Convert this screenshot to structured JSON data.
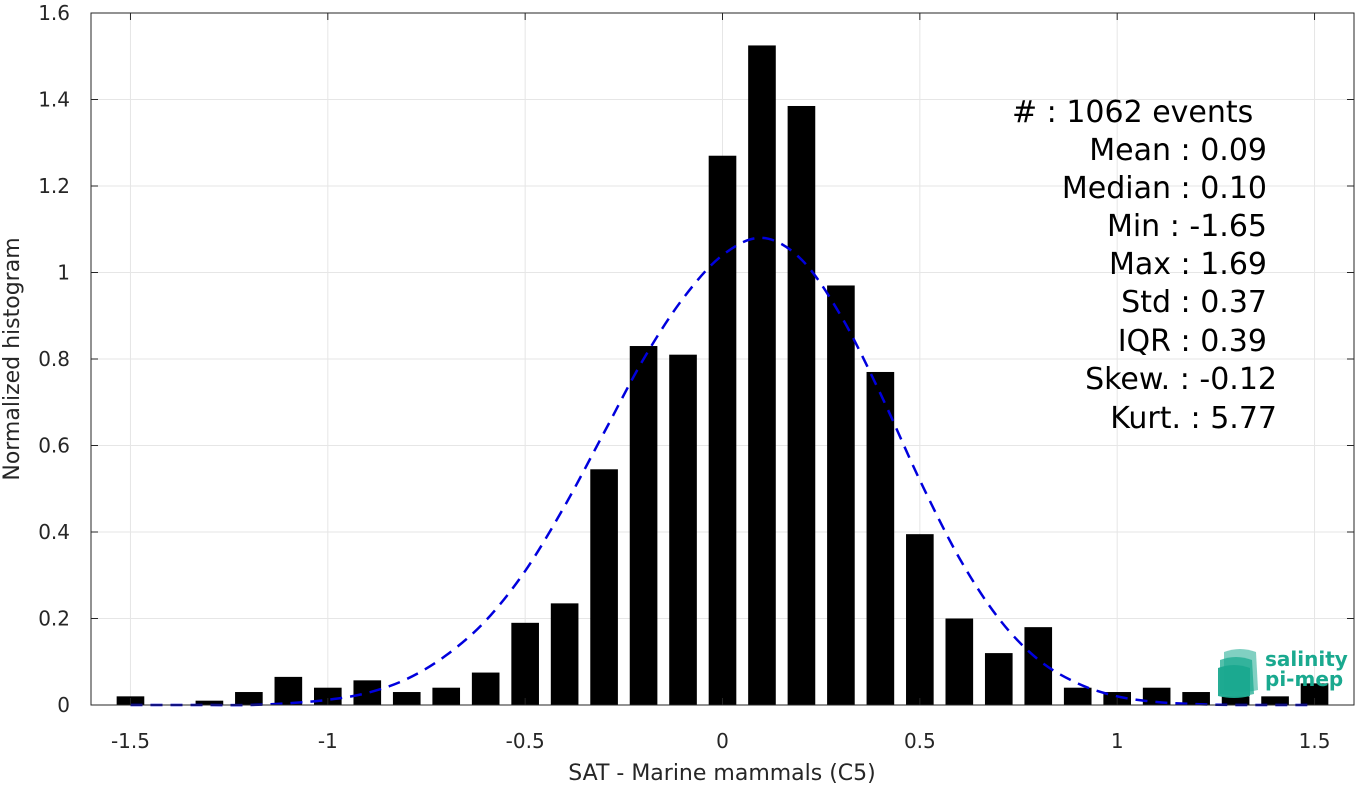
{
  "chart_data": {
    "type": "bar",
    "xlabel": "SAT - Marine mammals (C5)",
    "ylabel": "Normalized histogram",
    "xlim": [
      -1.6,
      1.6
    ],
    "ylim": [
      0,
      1.6
    ],
    "xticks": [
      -1.5,
      -1,
      -0.5,
      0,
      0.5,
      1,
      1.5
    ],
    "xtick_labels": [
      "-1.5",
      "-1",
      "-0.5",
      "0",
      "0.5",
      "1",
      "1.5"
    ],
    "yticks": [
      0,
      0.2,
      0.4,
      0.6,
      0.8,
      1,
      1.2,
      1.4,
      1.6
    ],
    "ytick_labels": [
      "0",
      "0.2",
      "0.4",
      "0.6",
      "0.8",
      "1",
      "1.2",
      "1.4",
      "1.6"
    ],
    "grid": true,
    "bin_centers": [
      -1.5,
      -1.4,
      -1.3,
      -1.2,
      -1.1,
      -1.0,
      -0.9,
      -0.8,
      -0.7,
      -0.6,
      -0.5,
      -0.4,
      -0.3,
      -0.2,
      -0.1,
      0.0,
      0.1,
      0.2,
      0.3,
      0.4,
      0.5,
      0.6,
      0.7,
      0.8,
      0.9,
      1.0,
      1.1,
      1.2,
      1.3,
      1.4,
      1.5
    ],
    "values": [
      0.02,
      0.0,
      0.01,
      0.03,
      0.065,
      0.04,
      0.057,
      0.03,
      0.04,
      0.075,
      0.19,
      0.235,
      0.545,
      0.83,
      0.81,
      1.27,
      1.525,
      1.385,
      0.97,
      0.77,
      0.395,
      0.2,
      0.12,
      0.18,
      0.04,
      0.03,
      0.04,
      0.03,
      0.02,
      0.02,
      0.05
    ],
    "bar_color": "#000000",
    "fit_curve": {
      "style": "dashed",
      "color": "#0000dd",
      "x": [
        -1.5,
        -1.4,
        -1.3,
        -1.2,
        -1.1,
        -1.0,
        -0.9,
        -0.8,
        -0.7,
        -0.6,
        -0.5,
        -0.4,
        -0.3,
        -0.2,
        -0.1,
        0.0,
        0.1,
        0.2,
        0.3,
        0.4,
        0.5,
        0.6,
        0.7,
        0.8,
        0.9,
        1.0,
        1.1,
        1.2,
        1.3,
        1.4,
        1.5
      ],
      "y": [
        0.0,
        0.0,
        0.0,
        0.0,
        0.004,
        0.012,
        0.028,
        0.06,
        0.115,
        0.195,
        0.31,
        0.46,
        0.63,
        0.8,
        0.94,
        1.04,
        1.08,
        1.03,
        0.9,
        0.72,
        0.52,
        0.34,
        0.2,
        0.105,
        0.05,
        0.02,
        0.007,
        0.002,
        0.0,
        0.0,
        0.0
      ]
    },
    "stats": [
      "#  : 1062 events",
      "Mean : 0.09",
      "Median : 0.10",
      "Min : -1.65",
      "Max : 1.69",
      "Std : 0.37",
      "IQR : 0.39",
      "Skew. : -0.12",
      "Kurt. : 5.77"
    ]
  },
  "logo": {
    "line1": "salinity",
    "line2": "pi-mep",
    "color": "#1aa98f"
  }
}
